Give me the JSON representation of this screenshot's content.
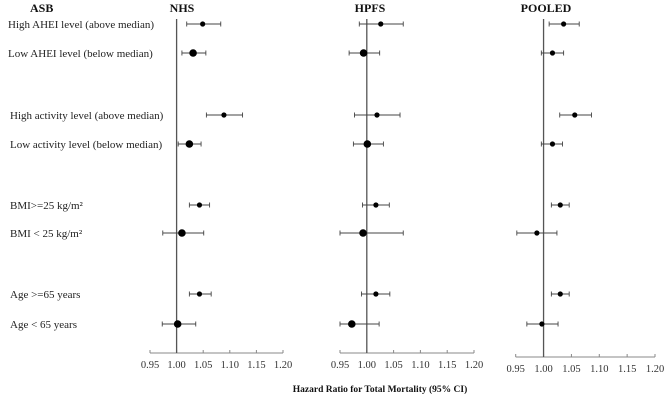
{
  "chart_data": {
    "type": "forest",
    "row_header": "ASB",
    "xlabel": "Hazard  Ratio for Total Mortality (95% CI)",
    "xlim": [
      0.95,
      1.2
    ],
    "xticks": [
      "0.95",
      "1.00",
      "1.05",
      "1.10",
      "1.15",
      "1.20"
    ],
    "reference_line": 1.0,
    "rows": [
      "High AHEI  level (above median)",
      "Low AHEI  level (below median)",
      "High activity level (above median)",
      "Low activity level (below median)",
      "BMI>=25 kg/m²",
      "BMI  < 25 kg/m²",
      "Age  >=65 years",
      "Age  < 65 years"
    ],
    "panels": [
      {
        "title": "NHS",
        "points": [
          {
            "hr": 1.049,
            "lo": 1.019,
            "hi": 1.083
          },
          {
            "hr": 1.031,
            "lo": 1.01,
            "hi": 1.055
          },
          {
            "hr": 1.089,
            "lo": 1.056,
            "hi": 1.124
          },
          {
            "hr": 1.024,
            "lo": 1.003,
            "hi": 1.046
          },
          {
            "hr": 1.043,
            "lo": 1.024,
            "hi": 1.062
          },
          {
            "hr": 1.01,
            "lo": 0.974,
            "hi": 1.051
          },
          {
            "hr": 1.043,
            "lo": 1.024,
            "hi": 1.065
          },
          {
            "hr": 1.002,
            "lo": 0.973,
            "hi": 1.036
          }
        ]
      },
      {
        "title": "HPFS",
        "points": [
          {
            "hr": 1.026,
            "lo": 0.986,
            "hi": 1.068
          },
          {
            "hr": 0.994,
            "lo": 0.967,
            "hi": 1.024
          },
          {
            "hr": 1.019,
            "lo": 0.977,
            "hi": 1.062
          },
          {
            "hr": 1.001,
            "lo": 0.975,
            "hi": 1.031
          },
          {
            "hr": 1.017,
            "lo": 0.992,
            "hi": 1.042
          },
          {
            "hr": 0.993,
            "lo": 0.95,
            "hi": 1.068
          },
          {
            "hr": 1.017,
            "lo": 0.99,
            "hi": 1.043
          },
          {
            "hr": 0.972,
            "lo": 0.95,
            "hi": 1.023
          }
        ]
      },
      {
        "title": "POOLED",
        "points": [
          {
            "hr": 1.036,
            "lo": 1.01,
            "hi": 1.064
          },
          {
            "hr": 1.016,
            "lo": 0.996,
            "hi": 1.036
          },
          {
            "hr": 1.056,
            "lo": 1.029,
            "hi": 1.086
          },
          {
            "hr": 1.016,
            "lo": 0.996,
            "hi": 1.034
          },
          {
            "hr": 1.03,
            "lo": 1.014,
            "hi": 1.046
          },
          {
            "hr": 0.988,
            "lo": 0.952,
            "hi": 1.024
          },
          {
            "hr": 1.03,
            "lo": 1.014,
            "hi": 1.046
          },
          {
            "hr": 0.997,
            "lo": 0.97,
            "hi": 1.026
          }
        ]
      }
    ]
  }
}
